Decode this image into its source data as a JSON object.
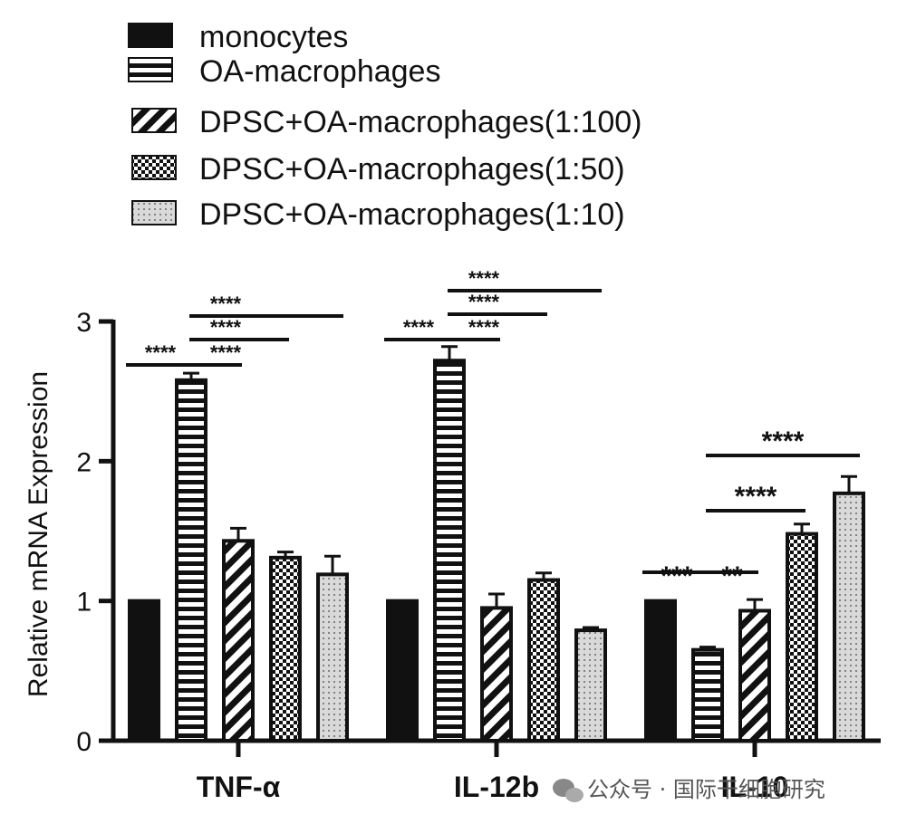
{
  "chart_data": {
    "type": "bar",
    "title": "",
    "xlabel": "",
    "ylabel": "Relative mRNA Expression",
    "ylim": [
      0,
      3
    ],
    "yticks": [
      "0",
      "1",
      "2",
      "3"
    ],
    "categories": [
      "TNF-α",
      "IL-12b",
      "IL-10"
    ],
    "legend_placement": "top-left",
    "grid": false,
    "series": [
      {
        "name": "monocytes",
        "pattern": "solid",
        "values": [
          1.0,
          1.0,
          1.0
        ],
        "errors": [
          0,
          0,
          0
        ]
      },
      {
        "name": "OA-macrophages",
        "pattern": "horizontal-stripes",
        "values": [
          2.58,
          2.72,
          0.65
        ],
        "errors": [
          0.05,
          0.1,
          0.02
        ]
      },
      {
        "name": "DPSC+OA-macrophages(1:100)",
        "pattern": "diagonal-stripes",
        "values": [
          1.43,
          0.95,
          0.93
        ],
        "errors": [
          0.09,
          0.1,
          0.08
        ]
      },
      {
        "name": "DPSC+OA-macrophages(1:50)",
        "pattern": "checker",
        "values": [
          1.31,
          1.15,
          1.48
        ],
        "errors": [
          0.04,
          0.05,
          0.07
        ]
      },
      {
        "name": "DPSC+OA-macrophages(1:10)",
        "pattern": "dots",
        "values": [
          1.19,
          0.79,
          1.77
        ],
        "errors": [
          0.13,
          0.02,
          0.12
        ]
      }
    ],
    "significance": [
      {
        "category": 0,
        "from": 0,
        "to": 1,
        "label": "****"
      },
      {
        "category": 0,
        "from": 1,
        "to": 2,
        "label": "****"
      },
      {
        "category": 0,
        "from": 1,
        "to": 3,
        "label": "****"
      },
      {
        "category": 0,
        "from": 1,
        "to": 4,
        "label": "****"
      },
      {
        "category": 1,
        "from": 0,
        "to": 1,
        "label": "****"
      },
      {
        "category": 1,
        "from": 1,
        "to": 2,
        "label": "****"
      },
      {
        "category": 1,
        "from": 1,
        "to": 3,
        "label": "****"
      },
      {
        "category": 1,
        "from": 1,
        "to": 4,
        "label": "****"
      },
      {
        "category": 2,
        "from": 0,
        "to": 1,
        "label": "***"
      },
      {
        "category": 2,
        "from": 1,
        "to": 2,
        "label": "**"
      },
      {
        "category": 2,
        "from": 1,
        "to": 3,
        "label": "****"
      },
      {
        "category": 2,
        "from": 1,
        "to": 4,
        "label": "****"
      }
    ]
  },
  "watermark": {
    "text": "公众号 · 国际干细胞研究",
    "icon": "wechat-icon"
  }
}
